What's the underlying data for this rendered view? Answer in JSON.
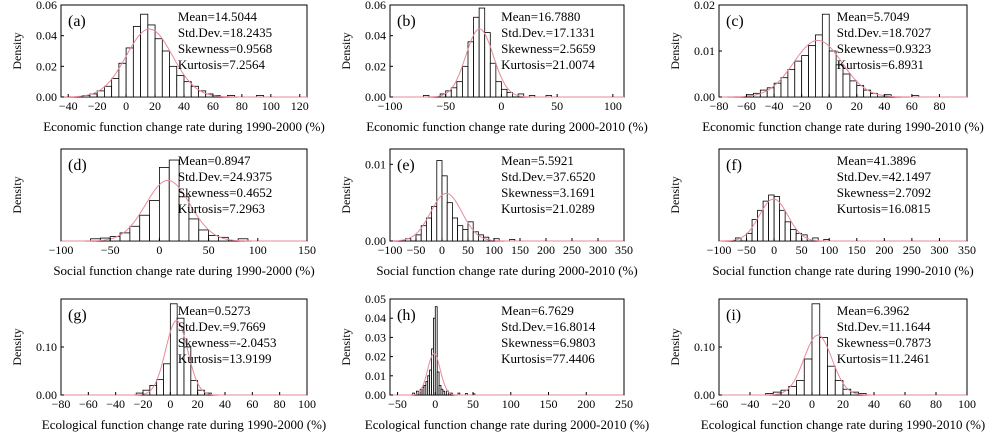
{
  "chart_data": [
    {
      "type": "bar",
      "panel_label": "(a)",
      "ylabel": "Density",
      "xlabel": "Economic function change rate during 1990-2000 (%)",
      "xlim": [
        -45,
        125
      ],
      "ylim": [
        0,
        0.06
      ],
      "xticks": [
        -40,
        -20,
        0,
        20,
        40,
        60,
        80,
        100,
        120
      ],
      "yticks": [
        0.0,
        0.02,
        0.04,
        0.06
      ],
      "yticklabels": [
        "0.00",
        "0.02",
        "0.04",
        "0.06"
      ],
      "bin_width": 5,
      "bins": [
        [
          -30,
          0.001
        ],
        [
          -25,
          0.002
        ],
        [
          -20,
          0.004
        ],
        [
          -15,
          0.007
        ],
        [
          -10,
          0.012
        ],
        [
          -5,
          0.022
        ],
        [
          0,
          0.032
        ],
        [
          5,
          0.046
        ],
        [
          10,
          0.054
        ],
        [
          15,
          0.047
        ],
        [
          20,
          0.038
        ],
        [
          25,
          0.03
        ],
        [
          30,
          0.02
        ],
        [
          35,
          0.014
        ],
        [
          40,
          0.01
        ],
        [
          45,
          0.007
        ],
        [
          50,
          0.004
        ],
        [
          55,
          0.002
        ],
        [
          60,
          0.001
        ],
        [
          70,
          0.001
        ],
        [
          90,
          0.001
        ]
      ],
      "fit_curve": {
        "type": "normal",
        "color": "#e88a9a"
      },
      "stats": {
        "mean": "Mean=14.5044",
        "std": "Std.Dev.=18.2435",
        "skewness": "Skewness=0.9568",
        "kurtosis": "Kurtosis=7.2564"
      }
    },
    {
      "type": "bar",
      "panel_label": "(b)",
      "ylabel": "Density",
      "xlabel": "Economic function change rate during 2000-2010 (%)",
      "xlim": [
        -100,
        110
      ],
      "ylim": [
        0,
        0.06
      ],
      "xticks": [
        -100,
        -50,
        0,
        50,
        100
      ],
      "yticks": [
        0.0,
        0.02,
        0.04,
        0.06
      ],
      "yticklabels": [
        "0.00",
        "0.02",
        "0.04",
        "0.06"
      ],
      "bin_width": 5,
      "bins": [
        [
          -70,
          0.001
        ],
        [
          -55,
          0.002
        ],
        [
          -50,
          0.004
        ],
        [
          -45,
          0.006
        ],
        [
          -40,
          0.01
        ],
        [
          -35,
          0.02
        ],
        [
          -30,
          0.036
        ],
        [
          -25,
          0.052
        ],
        [
          -20,
          0.058
        ],
        [
          -15,
          0.042
        ],
        [
          -10,
          0.022
        ],
        [
          -5,
          0.01
        ],
        [
          0,
          0.005
        ],
        [
          5,
          0.003
        ],
        [
          15,
          0.002
        ],
        [
          25,
          0.001
        ],
        [
          40,
          0.001
        ]
      ],
      "fit_curve": {
        "type": "normal",
        "color": "#e88a9a"
      },
      "stats": {
        "mean": "Mean=16.7880",
        "std": "Std.Dev.=17.1331",
        "skewness": "Skewness=2.5659",
        "kurtosis": "Kurtosis=21.0074"
      }
    },
    {
      "type": "bar",
      "panel_label": "(c)",
      "ylabel": "Density",
      "xlabel": "Economic function change rate during 1990-2010 (%)",
      "xlim": [
        -80,
        100
      ],
      "ylim": [
        0,
        0.02
      ],
      "xticks": [
        -80,
        -60,
        -40,
        -20,
        0,
        20,
        40,
        60,
        80
      ],
      "yticks": [
        0.0,
        0.01,
        0.02
      ],
      "yticklabels": [
        "0.00",
        "0.01",
        "0.02"
      ],
      "bin_width": 5,
      "bins": [
        [
          -60,
          0.0005
        ],
        [
          -55,
          0.0008
        ],
        [
          -50,
          0.0015
        ],
        [
          -45,
          0.002
        ],
        [
          -40,
          0.003
        ],
        [
          -35,
          0.0042
        ],
        [
          -30,
          0.006
        ],
        [
          -25,
          0.0078
        ],
        [
          -20,
          0.009
        ],
        [
          -15,
          0.0112
        ],
        [
          -10,
          0.0135
        ],
        [
          -5,
          0.018
        ],
        [
          0,
          0.01
        ],
        [
          5,
          0.007
        ],
        [
          10,
          0.005
        ],
        [
          15,
          0.0035
        ],
        [
          20,
          0.0025
        ],
        [
          25,
          0.0015
        ],
        [
          30,
          0.0008
        ],
        [
          40,
          0.0005
        ],
        [
          60,
          0.0003
        ]
      ],
      "fit_curve": {
        "type": "normal",
        "color": "#e88a9a"
      },
      "stats": {
        "mean": "Mean=5.7049",
        "std": "Std.Dev.=18.7027",
        "skewness": "Skewness=0.9323",
        "kurtosis": "Kurtosis=6.8931"
      }
    },
    {
      "type": "bar",
      "panel_label": "(d)",
      "ylabel": "Density",
      "xlabel": "Social function change rate during 1990-2000 (%)",
      "xlim": [
        -100,
        150
      ],
      "ylim": [
        0,
        0.025
      ],
      "xticks": [
        -100,
        -50,
        0,
        50,
        100,
        150
      ],
      "yticks": [],
      "yticklabels": [],
      "bin_width": 10,
      "bins": [
        [
          -70,
          0.0006
        ],
        [
          -60,
          0.0008
        ],
        [
          -50,
          0.0012
        ],
        [
          -40,
          0.0022
        ],
        [
          -30,
          0.004
        ],
        [
          -20,
          0.007
        ],
        [
          -10,
          0.011
        ],
        [
          0,
          0.02
        ],
        [
          10,
          0.022
        ],
        [
          20,
          0.012
        ],
        [
          30,
          0.006
        ],
        [
          40,
          0.003
        ],
        [
          50,
          0.0015
        ],
        [
          60,
          0.001
        ],
        [
          80,
          0.0006
        ]
      ],
      "fit_curve": {
        "type": "normal",
        "color": "#e88a9a"
      },
      "stats": {
        "mean": "Mean=0.8947",
        "std": "Std.Dev.=24.9375",
        "skewness": "Skewness=0.4652",
        "kurtosis": "Kurtosis=7.2963"
      }
    },
    {
      "type": "bar",
      "panel_label": "(e)",
      "ylabel": "Density",
      "xlabel": "Social function change rate during 2000-2010 (%)",
      "xlim": [
        -100,
        350
      ],
      "ylim": [
        0,
        0.012
      ],
      "xticks": [
        -100,
        -50,
        0,
        50,
        100,
        150,
        200,
        250,
        300,
        350
      ],
      "yticks": [
        0.0,
        0.01
      ],
      "yticklabels": [
        "0.00",
        "0.01"
      ],
      "bin_width": 10,
      "bins": [
        [
          -70,
          0.0003
        ],
        [
          -50,
          0.0008
        ],
        [
          -40,
          0.002
        ],
        [
          -30,
          0.003
        ],
        [
          -20,
          0.0045
        ],
        [
          -10,
          0.0105
        ],
        [
          0,
          0.0085
        ],
        [
          10,
          0.005
        ],
        [
          20,
          0.003
        ],
        [
          30,
          0.002
        ],
        [
          40,
          0.0015
        ],
        [
          50,
          0.0025
        ],
        [
          60,
          0.0012
        ],
        [
          70,
          0.0008
        ],
        [
          80,
          0.0005
        ],
        [
          100,
          0.0003
        ],
        [
          130,
          0.0002
        ]
      ],
      "fit_curve": {
        "type": "normal",
        "color": "#e88a9a"
      },
      "stats": {
        "mean": "Mean=5.5921",
        "std": "Std.Dev.=37.6520",
        "skewness": "Skewness=3.1691",
        "kurtosis": "Kurtosis=21.0289"
      }
    },
    {
      "type": "bar",
      "panel_label": "(f)",
      "ylabel": "Density",
      "xlabel": "Social function change rate during 1990-2010 (%)",
      "xlim": [
        -100,
        350
      ],
      "ylim": [
        0,
        0.012
      ],
      "xticks": [
        -100,
        -50,
        0,
        50,
        100,
        150,
        200,
        250,
        300,
        350
      ],
      "yticks": [],
      "yticklabels": [],
      "bin_width": 10,
      "bins": [
        [
          -70,
          0.0004
        ],
        [
          -50,
          0.001
        ],
        [
          -40,
          0.0028
        ],
        [
          -30,
          0.004
        ],
        [
          -20,
          0.0052
        ],
        [
          -10,
          0.006
        ],
        [
          0,
          0.0058
        ],
        [
          10,
          0.004
        ],
        [
          20,
          0.0025
        ],
        [
          30,
          0.0015
        ],
        [
          40,
          0.001
        ],
        [
          50,
          0.0008
        ],
        [
          70,
          0.0004
        ],
        [
          90,
          0.0002
        ]
      ],
      "fit_curve": {
        "type": "normal",
        "color": "#e88a9a"
      },
      "stats": {
        "mean": "Mean=41.3896",
        "std": "Std.Dev.=42.1497",
        "skewness": "Skewness=2.7092",
        "kurtosis": "Kurtosis=16.0815"
      }
    },
    {
      "type": "bar",
      "panel_label": "(g)",
      "ylabel": "Density",
      "xlabel": "Ecological function change rate during 1990-2000 (%)",
      "xlim": [
        -80,
        100
      ],
      "ylim": [
        0,
        0.2
      ],
      "xticks": [
        -80,
        -60,
        -40,
        -20,
        0,
        20,
        40,
        60,
        80,
        100
      ],
      "yticks": [
        0.0,
        0.1
      ],
      "yticklabels": [
        "0.00",
        "0.10"
      ],
      "bin_width": 5,
      "bins": [
        [
          -25,
          0.004
        ],
        [
          -20,
          0.01
        ],
        [
          -15,
          0.02
        ],
        [
          -10,
          0.032
        ],
        [
          -5,
          0.065
        ],
        [
          0,
          0.19
        ],
        [
          5,
          0.16
        ],
        [
          10,
          0.1
        ],
        [
          15,
          0.03
        ],
        [
          20,
          0.01
        ],
        [
          25,
          0.004
        ]
      ],
      "fit_curve": {
        "type": "normal",
        "color": "#e88a9a"
      },
      "stats": {
        "mean": "Mean=0.5273",
        "std": "Std.Dev.=9.7669",
        "skewness": "Skewness=-2.0453",
        "kurtosis": "Kurtosis=13.9199"
      }
    },
    {
      "type": "bar",
      "panel_label": "(h)",
      "ylabel": "Density",
      "xlabel": "Ecological function change rate during 2000-2010 (%)",
      "xlim": [
        -60,
        250
      ],
      "ylim": [
        0,
        0.05
      ],
      "xticks": [
        -50,
        0,
        50,
        100,
        150,
        200,
        250
      ],
      "yticks": [
        0.0,
        0.01,
        0.02,
        0.03,
        0.04,
        0.05
      ],
      "yticklabels": [
        "0.00",
        "0.01",
        "0.02",
        "0.03",
        "0.04",
        "0.05"
      ],
      "bin_width": 2.5,
      "bins": [
        [
          -30,
          0.001
        ],
        [
          -25,
          0.002
        ],
        [
          -20,
          0.003
        ],
        [
          -17.5,
          0.004
        ],
        [
          -15,
          0.005
        ],
        [
          -12.5,
          0.007
        ],
        [
          -10,
          0.01
        ],
        [
          -7.5,
          0.013
        ],
        [
          -5,
          0.024
        ],
        [
          -2.5,
          0.04
        ],
        [
          0,
          0.046
        ],
        [
          2.5,
          0.012
        ],
        [
          5,
          0.005
        ],
        [
          7.5,
          0.003
        ],
        [
          10,
          0.002
        ],
        [
          15,
          0.002
        ],
        [
          20,
          0.001
        ],
        [
          30,
          0.001
        ],
        [
          40,
          0.0008
        ],
        [
          50,
          0.0006
        ]
      ],
      "fit_curve": {
        "type": "normal",
        "color": "#e88a9a"
      },
      "stats": {
        "mean": "Mean=6.7629",
        "std": "Std.Dev.=16.8014",
        "skewness": "Skewness=6.9803",
        "kurtosis": "Kurtosis=77.4406"
      }
    },
    {
      "type": "bar",
      "panel_label": "(i)",
      "ylabel": "Density",
      "xlabel": "Ecological function change rate during 1990-2010 (%)",
      "xlim": [
        -60,
        100
      ],
      "ylim": [
        0,
        0.2
      ],
      "xticks": [
        -60,
        -40,
        -20,
        0,
        20,
        40,
        60,
        80,
        100
      ],
      "yticks": [
        0.0,
        0.1
      ],
      "yticklabels": [
        "0.00",
        "0.10"
      ],
      "bin_width": 5,
      "bins": [
        [
          -30,
          0.003
        ],
        [
          -25,
          0.006
        ],
        [
          -20,
          0.01
        ],
        [
          -15,
          0.018
        ],
        [
          -10,
          0.03
        ],
        [
          -5,
          0.075
        ],
        [
          0,
          0.19
        ],
        [
          5,
          0.12
        ],
        [
          10,
          0.06
        ],
        [
          15,
          0.03
        ],
        [
          20,
          0.012
        ],
        [
          25,
          0.006
        ],
        [
          30,
          0.003
        ]
      ],
      "fit_curve": {
        "type": "normal",
        "color": "#e88a9a"
      },
      "stats": {
        "mean": "Mean=6.3962",
        "std": "Std.Dev.=11.1644",
        "skewness": "Skewness=0.7873",
        "kurtosis": "Kurtosis=11.2461"
      }
    }
  ]
}
